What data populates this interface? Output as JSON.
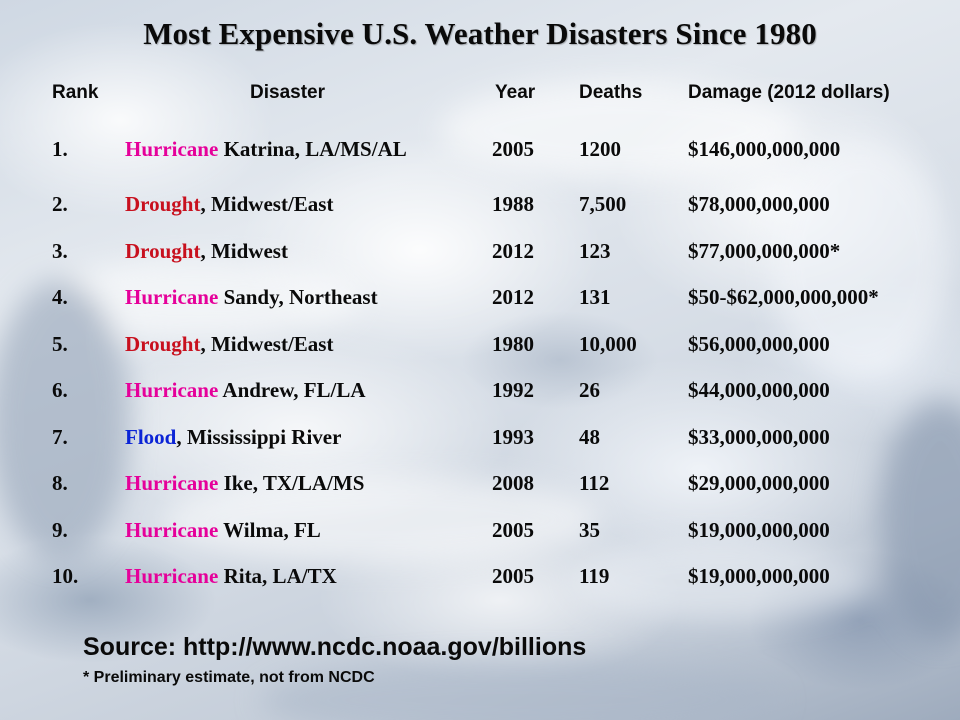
{
  "title": "Most Expensive U.S. Weather Disasters Since 1980",
  "colors": {
    "hurricane": "#e5009a",
    "drought": "#c8101e",
    "flood": "#0b24d6",
    "text": "#0a0a0a"
  },
  "headers": {
    "rank": "Rank",
    "disaster": "Disaster",
    "year": "Year",
    "deaths": "Deaths",
    "damage": "Damage (2012 dollars)"
  },
  "rows": [
    {
      "rank": "1.",
      "type": "Hurricane",
      "kind": "hurricane",
      "rest": " Katrina, LA/MS/AL",
      "year": "2005",
      "deaths": "1200",
      "damage": "$146,000,000,000"
    },
    {
      "rank": "2.",
      "type": "Drought",
      "kind": "drought",
      "rest": ", Midwest/East",
      "year": "1988",
      "deaths": "7,500",
      "damage": "$78,000,000,000"
    },
    {
      "rank": "3.",
      "type": "Drought",
      "kind": "drought",
      "rest": ", Midwest",
      "year": "2012",
      "deaths": "123",
      "damage": "$77,000,000,000*"
    },
    {
      "rank": "4.",
      "type": "Hurricane",
      "kind": "hurricane",
      "rest": " Sandy, Northeast",
      "year": "2012",
      "deaths": "131",
      "damage": "$50-$62,000,000,000*"
    },
    {
      "rank": "5.",
      "type": "Drought",
      "kind": "drought",
      "rest": ", Midwest/East",
      "year": "1980",
      "deaths": "10,000",
      "damage": "$56,000,000,000"
    },
    {
      "rank": "6.",
      "type": "Hurricane",
      "kind": "hurricane",
      "rest": " Andrew, FL/LA",
      "year": "1992",
      "deaths": "26",
      "damage": "$44,000,000,000"
    },
    {
      "rank": "7.",
      "type": "Flood",
      "kind": "flood",
      "rest": ", Mississippi River",
      "year": "1993",
      "deaths": "48",
      "damage": "$33,000,000,000"
    },
    {
      "rank": "8.",
      "type": "Hurricane",
      "kind": "hurricane",
      "rest": " Ike, TX/LA/MS",
      "year": "2008",
      "deaths": "112",
      "damage": "$29,000,000,000"
    },
    {
      "rank": "9.",
      "type": "Hurricane",
      "kind": "hurricane",
      "rest": " Wilma, FL",
      "year": "2005",
      "deaths": "35",
      "damage": "$19,000,000,000"
    },
    {
      "rank": "10.",
      "type": "Hurricane",
      "kind": "hurricane",
      "rest": " Rita, LA/TX",
      "year": "2005",
      "deaths": "119",
      "damage": "$19,000,000,000"
    }
  ],
  "source": "Source: http://www.ncdc.noaa.gov/billions",
  "note": "* Preliminary estimate, not from NCDC"
}
